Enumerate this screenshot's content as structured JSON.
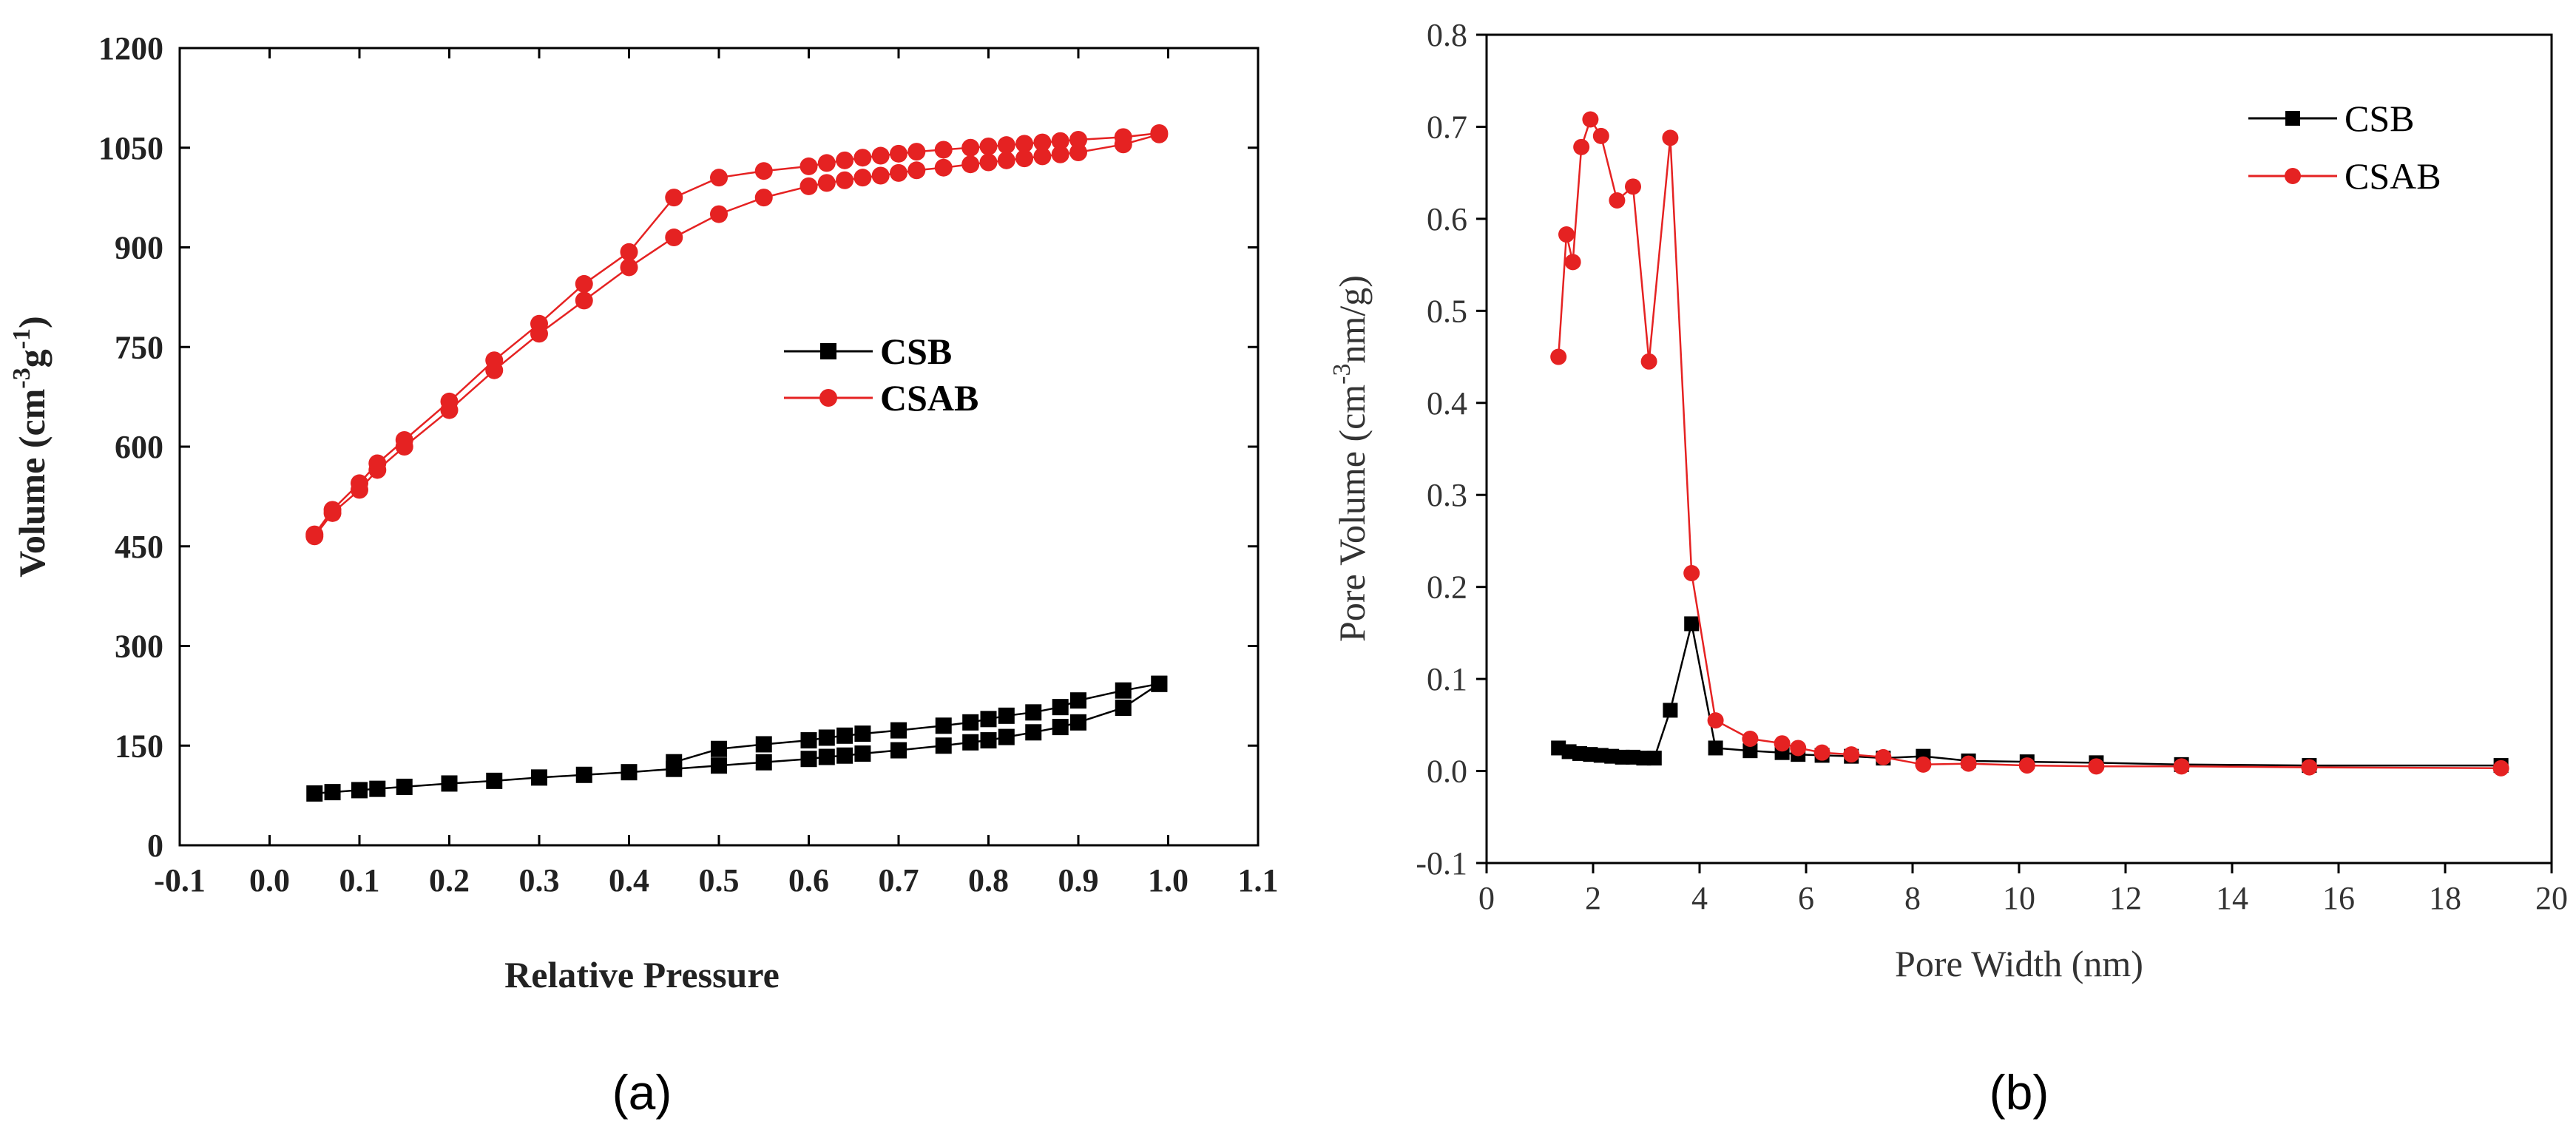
{
  "chart_data": [
    {
      "id": "a",
      "type": "scatter",
      "panel_label": "(a)",
      "title": "",
      "xlabel": "Relative Pressure",
      "ylabel_main": "Volume (cm",
      "ylabel_sup1": "-3",
      "ylabel_mid": "g",
      "ylabel_sup2": "-1",
      "ylabel_end": ")",
      "xlim": [
        -0.1,
        1.1
      ],
      "ylim": [
        0,
        1200
      ],
      "xticks": [
        -0.1,
        0.0,
        0.1,
        0.2,
        0.3,
        0.4,
        0.5,
        0.6,
        0.7,
        0.8,
        0.9,
        1.0,
        1.1
      ],
      "xtick_labels": [
        "-0.1",
        "0.0",
        "0.1",
        "0.2",
        "0.3",
        "0.4",
        "0.5",
        "0.6",
        "0.7",
        "0.8",
        "0.9",
        "1.0",
        "1.1"
      ],
      "yticks": [
        0,
        150,
        300,
        450,
        600,
        750,
        900,
        1050,
        1200
      ],
      "ytick_labels": [
        "0",
        "150",
        "300",
        "450",
        "600",
        "750",
        "900",
        "1050",
        "1200"
      ],
      "legend": [
        "CSB",
        "CSAB"
      ],
      "legend_location": "center-right",
      "series": [
        {
          "name": "CSB",
          "color": "#000000",
          "marker": "square",
          "lines": [
            {
              "x": [
                0.05,
                0.07,
                0.1,
                0.12,
                0.15,
                0.2,
                0.25,
                0.3,
                0.35,
                0.4,
                0.45,
                0.5,
                0.55,
                0.6,
                0.62,
                0.64,
                0.66,
                0.7,
                0.75,
                0.78,
                0.8,
                0.82,
                0.85,
                0.88,
                0.9,
                0.95,
                0.99
              ],
              "y": [
                78,
                80,
                83,
                85,
                88,
                93,
                97,
                102,
                106,
                110,
                115,
                120,
                125,
                130,
                133,
                135,
                138,
                143,
                150,
                155,
                158,
                163,
                170,
                178,
                185,
                207,
                243
              ]
            },
            {
              "x": [
                0.45,
                0.5,
                0.55,
                0.6,
                0.62,
                0.64,
                0.66,
                0.7,
                0.75,
                0.78,
                0.8,
                0.82,
                0.85,
                0.88,
                0.9,
                0.95,
                0.99
              ],
              "y": [
                125,
                145,
                152,
                158,
                162,
                165,
                168,
                173,
                180,
                185,
                190,
                195,
                200,
                208,
                218,
                233,
                243
              ]
            }
          ]
        },
        {
          "name": "CSAB",
          "color": "#e52222",
          "marker": "circle",
          "lines": [
            {
              "x": [
                0.05,
                0.07,
                0.1,
                0.12,
                0.15,
                0.2,
                0.25,
                0.3,
                0.35,
                0.4,
                0.45,
                0.5,
                0.55,
                0.6,
                0.62,
                0.64,
                0.66,
                0.68,
                0.7,
                0.72,
                0.75,
                0.78,
                0.8,
                0.82,
                0.84,
                0.86,
                0.88,
                0.9,
                0.95,
                0.99
              ],
              "y": [
                465,
                500,
                535,
                565,
                600,
                655,
                715,
                770,
                820,
                870,
                915,
                950,
                975,
                992,
                997,
                1001,
                1005,
                1008,
                1012,
                1016,
                1020,
                1025,
                1028,
                1031,
                1034,
                1037,
                1040,
                1043,
                1055,
                1070
              ]
            },
            {
              "x": [
                0.05,
                0.07,
                0.1,
                0.12,
                0.15,
                0.2,
                0.25,
                0.3,
                0.35,
                0.4,
                0.45,
                0.5,
                0.55,
                0.6,
                0.62,
                0.64,
                0.66,
                0.68,
                0.7,
                0.72,
                0.75,
                0.78,
                0.8,
                0.82,
                0.84,
                0.86,
                0.88,
                0.9,
                0.95,
                0.99
              ],
              "y": [
                468,
                505,
                545,
                575,
                610,
                668,
                730,
                785,
                845,
                893,
                975,
                1005,
                1015,
                1022,
                1027,
                1031,
                1035,
                1038,
                1041,
                1044,
                1047,
                1050,
                1052,
                1054,
                1056,
                1058,
                1060,
                1062,
                1066,
                1072
              ]
            }
          ]
        }
      ]
    },
    {
      "id": "b",
      "type": "line",
      "panel_label": "(b)",
      "title": "",
      "xlabel": "Pore Width (nm)",
      "ylabel_main": "Pore Volume (cm",
      "ylabel_sup1": "-3",
      "ylabel_end": "nm/g)",
      "xlim": [
        0,
        20
      ],
      "ylim": [
        -0.1,
        0.8
      ],
      "xticks": [
        0,
        2,
        4,
        6,
        8,
        10,
        12,
        14,
        16,
        18,
        20
      ],
      "xtick_labels": [
        "0",
        "2",
        "4",
        "6",
        "8",
        "10",
        "12",
        "14",
        "16",
        "18",
        "20"
      ],
      "yticks": [
        -0.1,
        0.0,
        0.1,
        0.2,
        0.3,
        0.4,
        0.5,
        0.6,
        0.7,
        0.8
      ],
      "ytick_labels": [
        "-0.1",
        "0.0",
        "0.1",
        "0.2",
        "0.3",
        "0.4",
        "0.5",
        "0.6",
        "0.7",
        "0.8"
      ],
      "legend": [
        "CSB",
        "CSAB"
      ],
      "legend_location": "top-right",
      "series": [
        {
          "name": "CSB",
          "color": "#000000",
          "marker": "square",
          "x": [
            1.35,
            1.55,
            1.75,
            1.95,
            2.15,
            2.35,
            2.55,
            2.75,
            2.95,
            3.15,
            3.45,
            3.85,
            4.3,
            4.95,
            5.55,
            5.85,
            6.3,
            6.85,
            7.45,
            8.2,
            9.05,
            10.15,
            11.45,
            13.05,
            15.45,
            19.05
          ],
          "y": [
            0.025,
            0.021,
            0.019,
            0.018,
            0.017,
            0.016,
            0.015,
            0.015,
            0.014,
            0.014,
            0.066,
            0.16,
            0.025,
            0.022,
            0.02,
            0.018,
            0.017,
            0.016,
            0.014,
            0.016,
            0.011,
            0.01,
            0.009,
            0.007,
            0.006,
            0.006
          ]
        },
        {
          "name": "CSAB",
          "color": "#e52222",
          "marker": "circle",
          "x": [
            1.35,
            1.5,
            1.62,
            1.78,
            1.95,
            2.15,
            2.45,
            2.75,
            3.05,
            3.45,
            3.85,
            4.3,
            4.95,
            5.55,
            5.85,
            6.3,
            6.85,
            7.45,
            8.2,
            9.05,
            10.15,
            11.45,
            13.05,
            15.45,
            19.05
          ],
          "y": [
            0.45,
            0.583,
            0.553,
            0.678,
            0.708,
            0.69,
            0.62,
            0.635,
            0.445,
            0.688,
            0.215,
            0.055,
            0.035,
            0.03,
            0.025,
            0.02,
            0.018,
            0.015,
            0.007,
            0.008,
            0.006,
            0.005,
            0.005,
            0.004,
            0.003
          ]
        }
      ]
    }
  ]
}
